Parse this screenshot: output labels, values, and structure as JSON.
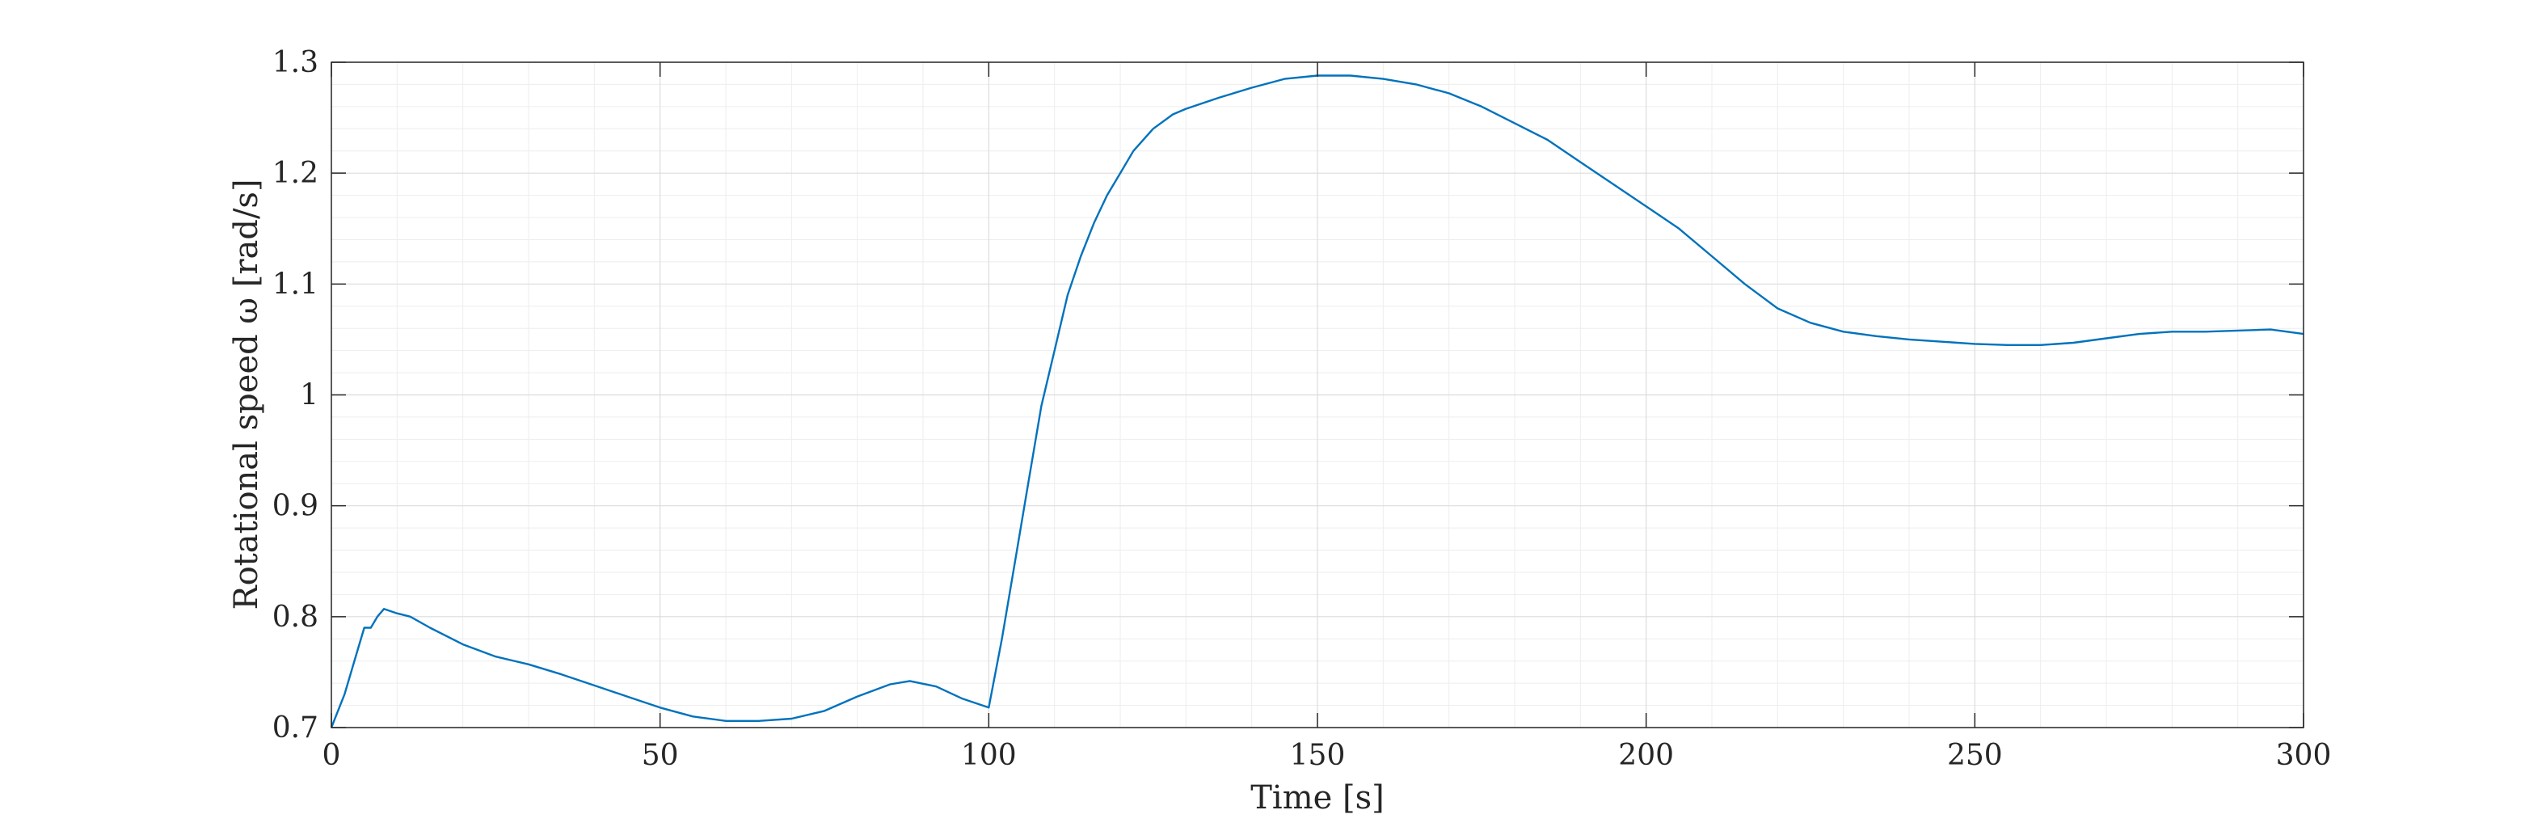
{
  "chart_data": {
    "type": "line",
    "title": "",
    "xlabel": "Time [s]",
    "ylabel": "Rotational speed ω [rad/s]",
    "xlim": [
      0,
      300
    ],
    "ylim": [
      0.7,
      1.3
    ],
    "xticks": [
      0,
      50,
      100,
      150,
      200,
      250,
      300
    ],
    "xtick_labels": [
      "0",
      "50",
      "100",
      "150",
      "200",
      "250",
      "300"
    ],
    "yticks": [
      0.7,
      0.8,
      0.9,
      1.0,
      1.1,
      1.2,
      1.3
    ],
    "ytick_labels": [
      "0.7",
      "0.8",
      "0.9",
      "1",
      "1.1",
      "1.2",
      "1.3"
    ],
    "grid": true,
    "minor_grid": true,
    "box": true,
    "series_color": "#0072BD",
    "series": [
      {
        "name": "",
        "x": [
          0,
          2,
          4,
          5,
          6,
          7,
          8,
          10,
          12,
          15,
          20,
          25,
          30,
          35,
          40,
          45,
          50,
          55,
          60,
          65,
          70,
          75,
          80,
          85,
          88,
          92,
          96,
          100,
          102,
          104,
          106,
          108,
          110,
          112,
          114,
          116,
          118,
          120,
          122,
          125,
          128,
          130,
          135,
          140,
          145,
          150,
          155,
          160,
          165,
          170,
          175,
          180,
          185,
          190,
          195,
          200,
          205,
          210,
          215,
          220,
          225,
          230,
          235,
          240,
          245,
          250,
          255,
          260,
          265,
          270,
          275,
          280,
          285,
          290,
          295,
          300
        ],
        "y": [
          0.7,
          0.73,
          0.77,
          0.79,
          0.79,
          0.8,
          0.807,
          0.803,
          0.8,
          0.79,
          0.775,
          0.764,
          0.757,
          0.748,
          0.738,
          0.728,
          0.718,
          0.71,
          0.706,
          0.706,
          0.708,
          0.715,
          0.728,
          0.739,
          0.742,
          0.737,
          0.726,
          0.718,
          0.78,
          0.85,
          0.92,
          0.99,
          1.04,
          1.09,
          1.125,
          1.155,
          1.18,
          1.2,
          1.22,
          1.24,
          1.253,
          1.258,
          1.268,
          1.277,
          1.285,
          1.288,
          1.288,
          1.285,
          1.28,
          1.272,
          1.26,
          1.245,
          1.23,
          1.21,
          1.19,
          1.17,
          1.15,
          1.125,
          1.1,
          1.078,
          1.065,
          1.057,
          1.053,
          1.05,
          1.048,
          1.046,
          1.045,
          1.045,
          1.047,
          1.051,
          1.055,
          1.057,
          1.057,
          1.058,
          1.059,
          1.055
        ]
      }
    ]
  }
}
